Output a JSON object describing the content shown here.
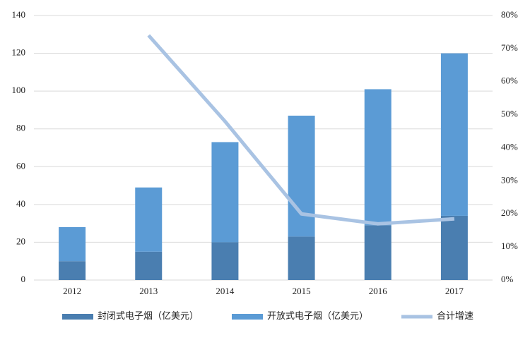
{
  "chart_data": {
    "type": "bar",
    "categories": [
      "2012",
      "2013",
      "2014",
      "2015",
      "2016",
      "2017"
    ],
    "series": [
      {
        "name": "封闭式电子烟（亿美元）",
        "color": "#4a7eb0",
        "values": [
          10,
          15,
          20,
          23,
          29,
          34
        ]
      },
      {
        "name": "开放式电子烟（亿美元）",
        "color": "#5b9bd5",
        "values": [
          18,
          34,
          53,
          64,
          72,
          86
        ]
      },
      {
        "name": "合计增速",
        "color": "#a9c3e3",
        "type": "line",
        "axis": "y2",
        "values": [
          null,
          74,
          48,
          20,
          17,
          18.5
        ]
      }
    ],
    "stacked": true,
    "ylim": [
      0,
      140
    ],
    "yticks": [
      0,
      20,
      40,
      60,
      80,
      100,
      120,
      140
    ],
    "y2lim": [
      0,
      80
    ],
    "y2ticks": [
      {
        "value": 0,
        "label": "0%"
      },
      {
        "value": 10,
        "label": "10%"
      },
      {
        "value": 20,
        "label": "20%"
      },
      {
        "value": 30,
        "label": "30%"
      },
      {
        "value": 40,
        "label": "40%"
      },
      {
        "value": 50,
        "label": "50%"
      },
      {
        "value": 60,
        "label": "60%"
      },
      {
        "value": 70,
        "label": "70%"
      },
      {
        "value": 80,
        "label": "80%"
      }
    ],
    "grid": true,
    "legend": "bottom"
  }
}
